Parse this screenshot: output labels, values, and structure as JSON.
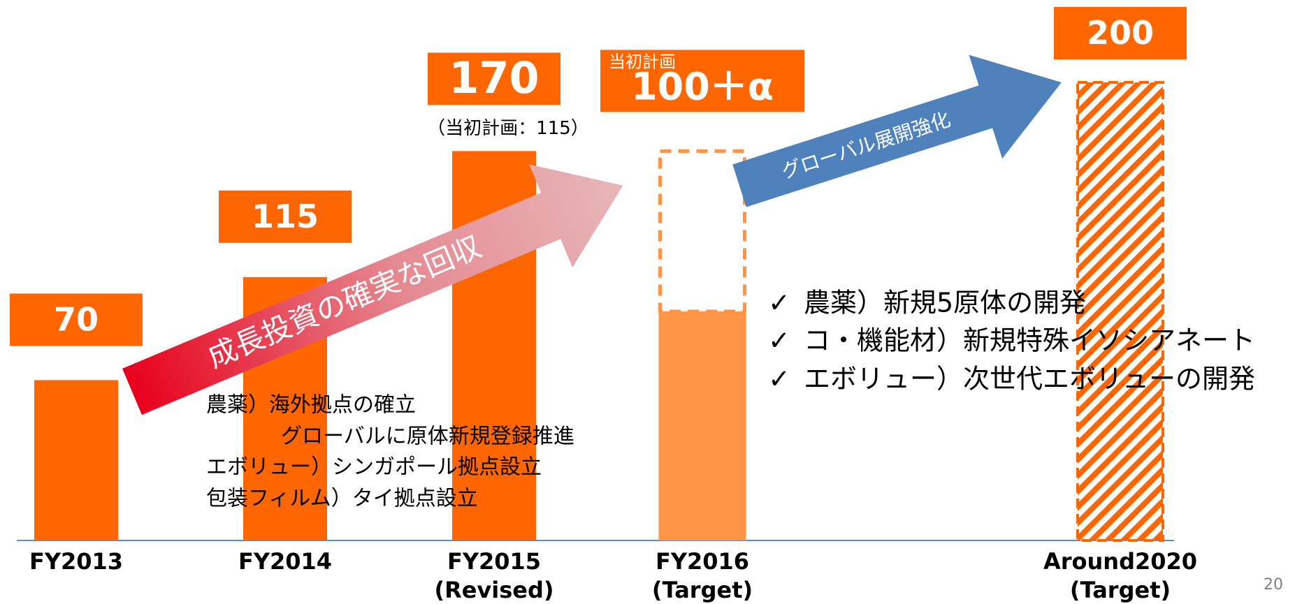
{
  "chart_data": {
    "type": "bar",
    "categories": [
      "FY2013",
      "FY2014",
      "FY2015",
      "FY2016",
      "Around2020"
    ],
    "category_notes": [
      null,
      null,
      "(Revised)",
      "(Target)",
      "(Target)"
    ],
    "values": [
      70,
      115,
      170,
      100,
      200
    ],
    "value_labels": [
      null,
      null,
      null,
      "100＋α",
      null
    ],
    "label_notes": [
      null,
      null,
      "（当初計画：115）",
      "当初計画",
      null
    ],
    "outline_values": [
      null,
      null,
      null,
      170,
      null
    ],
    "colors": [
      "#ff6600",
      "#ff6600",
      "#ff6600",
      "#ff9447",
      "#ff6600"
    ],
    "hatched": [
      false,
      false,
      false,
      false,
      true
    ],
    "ylim": [
      0,
      200
    ]
  },
  "arrows": [
    "成長投資の確実な回収",
    "グローバル展開強化"
  ],
  "notes": [
    "農薬）海外拠点の確立",
    "グローバルに原体新規登録推進",
    "エボリュー）シンガポール拠点設立",
    "包装フィルム）タイ拠点設立"
  ],
  "checklist": [
    "農薬）新規5原体の開発",
    "コ・機能材）新規特殊イソシアネート",
    "エボリュー）次世代エボリューの開発"
  ],
  "page_number": "20"
}
